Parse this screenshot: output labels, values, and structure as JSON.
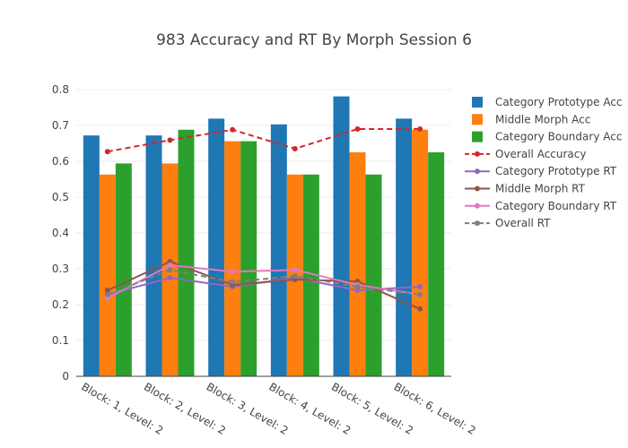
{
  "chart_data": {
    "type": "bar",
    "title": "983 Accuracy and RT By Morph Session 6",
    "xlabel": "",
    "ylabel": "",
    "ylim": [
      0,
      0.82
    ],
    "yticks": [
      "0",
      "0.1",
      "0.2",
      "0.3",
      "0.4",
      "0.5",
      "0.6",
      "0.7",
      "0.8"
    ],
    "grid": true,
    "legend_position": "right",
    "categories": [
      "Block: 1, Level: 2",
      "Block: 2, Level: 2",
      "Block: 3, Level: 2",
      "Block: 4, Level: 2",
      "Block: 5, Level: 2",
      "Block: 6, Level: 2"
    ],
    "bar_series": [
      {
        "name": "Category Prototype Acc",
        "color": "#1f77b4",
        "values": [
          0.672,
          0.672,
          0.719,
          0.703,
          0.781,
          0.719
        ]
      },
      {
        "name": "Middle Morph Acc",
        "color": "#ff7f0e",
        "values": [
          0.563,
          0.594,
          0.656,
          0.563,
          0.625,
          0.688
        ]
      },
      {
        "name": "Category Boundary Acc",
        "color": "#2ca02c",
        "values": [
          0.594,
          0.688,
          0.656,
          0.563,
          0.563,
          0.625
        ]
      }
    ],
    "line_series": [
      {
        "name": "Overall Accuracy",
        "color": "#d62728",
        "dash": true,
        "values": [
          0.627,
          0.659,
          0.688,
          0.635,
          0.69,
          0.69
        ]
      },
      {
        "name": "Category Prototype RT",
        "color": "#9467bd",
        "dash": false,
        "values": [
          0.228,
          0.275,
          0.25,
          0.275,
          0.24,
          0.25
        ]
      },
      {
        "name": "Middle Morph RT",
        "color": "#8c564b",
        "dash": false,
        "values": [
          0.24,
          0.32,
          0.255,
          0.27,
          0.265,
          0.188
        ]
      },
      {
        "name": "Category Boundary RT",
        "color": "#e377c2",
        "dash": false,
        "values": [
          0.218,
          0.31,
          0.292,
          0.297,
          0.255,
          0.228
        ]
      },
      {
        "name": "Overall RT",
        "color": "#7f7f7f",
        "dash": true,
        "values": [
          0.228,
          0.297,
          0.263,
          0.28,
          0.25,
          0.228
        ]
      }
    ]
  }
}
